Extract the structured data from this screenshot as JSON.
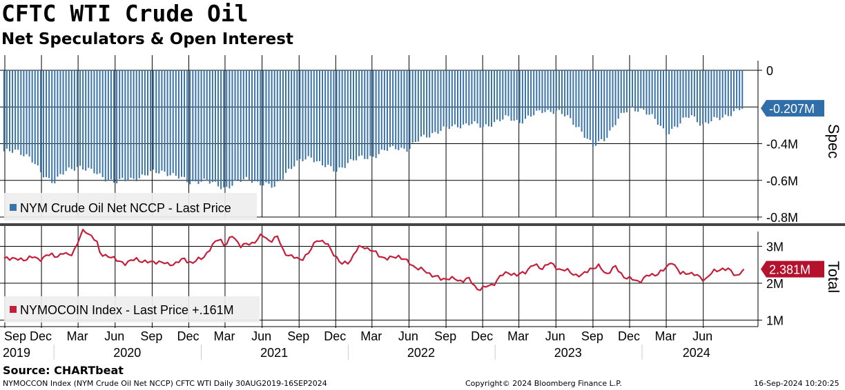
{
  "header": {
    "title": "CFTC WTI Crude Oil",
    "subtitle": "Net Speculators & Open Interest"
  },
  "footer": {
    "source": "Source: CHARTbeat",
    "description": "NYMOCCON Index (NYM Crude Oil Net NCCP) CFTC WTI  Daily 30AUG2019-16SEP2024",
    "copyright": "Copyright© 2024 Bloomberg Finance L.P.",
    "timestamp": "16-Sep-2024 10:20:25"
  },
  "colors": {
    "spec_bar": "#3a73a8",
    "total_line": "#c41e3a",
    "spec_label_bg": "#2f6ea8",
    "total_label_bg": "#b5122e",
    "grid": "#000000",
    "divider": "#444444"
  },
  "x_axis": {
    "month_ticks": [
      {
        "label": "Sep",
        "date": "2019-09-01"
      },
      {
        "label": "Dec",
        "date": "2019-12-01"
      },
      {
        "label": "Mar",
        "date": "2020-03-01"
      },
      {
        "label": "Jun",
        "date": "2020-06-01"
      },
      {
        "label": "Sep",
        "date": "2020-09-01"
      },
      {
        "label": "Dec",
        "date": "2020-12-01"
      },
      {
        "label": "Mar",
        "date": "2021-03-01"
      },
      {
        "label": "Jun",
        "date": "2021-06-01"
      },
      {
        "label": "Sep",
        "date": "2021-09-01"
      },
      {
        "label": "Dec",
        "date": "2021-12-01"
      },
      {
        "label": "Mar",
        "date": "2022-03-01"
      },
      {
        "label": "Jun",
        "date": "2022-06-01"
      },
      {
        "label": "Sep",
        "date": "2022-09-01"
      },
      {
        "label": "Dec",
        "date": "2022-12-01"
      },
      {
        "label": "Mar",
        "date": "2023-03-01"
      },
      {
        "label": "Jun",
        "date": "2023-06-01"
      },
      {
        "label": "Sep",
        "date": "2023-09-01"
      },
      {
        "label": "Dec",
        "date": "2023-12-01"
      },
      {
        "label": "Mar",
        "date": "2024-03-01"
      },
      {
        "label": "Jun",
        "date": "2024-06-01"
      }
    ],
    "year_labels": [
      {
        "label": "2019",
        "date": "2019-10-15"
      },
      {
        "label": "2020",
        "date": "2020-07-01"
      },
      {
        "label": "2021",
        "date": "2021-07-01"
      },
      {
        "label": "2022",
        "date": "2022-07-01"
      },
      {
        "label": "2023",
        "date": "2023-07-01"
      },
      {
        "label": "2024",
        "date": "2024-05-15"
      }
    ],
    "range": [
      "2019-08-20",
      "2024-10-15"
    ]
  },
  "chart_data": [
    {
      "type": "bar",
      "panel": "Spec",
      "axis_title": "Spec",
      "legend": "NYM Crude Oil Net NCCP - Last Price",
      "legend_placement": "bottom-left",
      "ylim": [
        -0.8,
        0
      ],
      "yticks": [
        {
          "value": 0,
          "label": "0"
        },
        {
          "value": -0.4,
          "label": "-0.4M"
        },
        {
          "value": -0.6,
          "label": "-0.6M"
        },
        {
          "value": -0.8,
          "label": "-0.8M"
        }
      ],
      "last_value_label": "-0.207M",
      "last_value": -0.207,
      "unit": "M",
      "points": [
        [
          "2019-08-30",
          -0.45
        ],
        [
          "2019-10-01",
          -0.43
        ],
        [
          "2019-11-01",
          -0.48
        ],
        [
          "2019-12-01",
          -0.56
        ],
        [
          "2020-01-01",
          -0.61
        ],
        [
          "2020-02-01",
          -0.55
        ],
        [
          "2020-03-01",
          -0.52
        ],
        [
          "2020-04-01",
          -0.55
        ],
        [
          "2020-05-01",
          -0.58
        ],
        [
          "2020-06-01",
          -0.61
        ],
        [
          "2020-07-01",
          -0.6
        ],
        [
          "2020-08-01",
          -0.58
        ],
        [
          "2020-09-01",
          -0.56
        ],
        [
          "2020-10-01",
          -0.55
        ],
        [
          "2020-11-01",
          -0.58
        ],
        [
          "2020-12-01",
          -0.61
        ],
        [
          "2021-01-01",
          -0.6
        ],
        [
          "2021-02-01",
          -0.62
        ],
        [
          "2021-03-01",
          -0.64
        ],
        [
          "2021-04-01",
          -0.61
        ],
        [
          "2021-05-01",
          -0.59
        ],
        [
          "2021-06-01",
          -0.62
        ],
        [
          "2021-07-01",
          -0.64
        ],
        [
          "2021-08-01",
          -0.55
        ],
        [
          "2021-09-01",
          -0.5
        ],
        [
          "2021-10-01",
          -0.47
        ],
        [
          "2021-11-01",
          -0.52
        ],
        [
          "2021-12-01",
          -0.55
        ],
        [
          "2022-01-01",
          -0.5
        ],
        [
          "2022-02-01",
          -0.48
        ],
        [
          "2022-03-01",
          -0.47
        ],
        [
          "2022-04-01",
          -0.44
        ],
        [
          "2022-05-01",
          -0.42
        ],
        [
          "2022-06-01",
          -0.43
        ],
        [
          "2022-07-01",
          -0.37
        ],
        [
          "2022-08-01",
          -0.34
        ],
        [
          "2022-09-01",
          -0.32
        ],
        [
          "2022-10-01",
          -0.3
        ],
        [
          "2022-11-01",
          -0.29
        ],
        [
          "2022-12-01",
          -0.31
        ],
        [
          "2023-01-01",
          -0.28
        ],
        [
          "2023-02-01",
          -0.26
        ],
        [
          "2023-03-01",
          -0.28
        ],
        [
          "2023-04-01",
          -0.25
        ],
        [
          "2023-05-01",
          -0.22
        ],
        [
          "2023-06-01",
          -0.22
        ],
        [
          "2023-07-01",
          -0.26
        ],
        [
          "2023-08-01",
          -0.32
        ],
        [
          "2023-09-01",
          -0.42
        ],
        [
          "2023-10-01",
          -0.37
        ],
        [
          "2023-11-01",
          -0.27
        ],
        [
          "2023-12-01",
          -0.21
        ],
        [
          "2024-01-01",
          -0.21
        ],
        [
          "2024-02-01",
          -0.27
        ],
        [
          "2024-03-01",
          -0.34
        ],
        [
          "2024-04-01",
          -0.3
        ],
        [
          "2024-05-01",
          -0.24
        ],
        [
          "2024-06-01",
          -0.3
        ],
        [
          "2024-07-01",
          -0.27
        ],
        [
          "2024-08-01",
          -0.24
        ],
        [
          "2024-09-10",
          -0.207
        ]
      ]
    },
    {
      "type": "line",
      "panel": "Total",
      "axis_title": "Total",
      "legend": "NYMOCOIN Index - Last Price +.161M",
      "legend_placement": "bottom-left",
      "ylim": [
        0.9,
        3.4
      ],
      "yticks": [
        {
          "value": 3,
          "label": "3M"
        },
        {
          "value": 2,
          "label": "2M"
        },
        {
          "value": 1,
          "label": "1M"
        }
      ],
      "last_value_label": "2.381M",
      "last_value": 2.381,
      "unit": "M",
      "points": [
        [
          "2019-08-30",
          2.65
        ],
        [
          "2019-09-20",
          2.7
        ],
        [
          "2019-10-15",
          2.6
        ],
        [
          "2019-11-05",
          2.75
        ],
        [
          "2019-11-25",
          2.6
        ],
        [
          "2019-12-15",
          2.8
        ],
        [
          "2020-01-05",
          2.7
        ],
        [
          "2020-01-25",
          2.85
        ],
        [
          "2020-02-10",
          2.7
        ],
        [
          "2020-02-25",
          3.0
        ],
        [
          "2020-03-10",
          3.4
        ],
        [
          "2020-03-25",
          3.35
        ],
        [
          "2020-04-15",
          3.2
        ],
        [
          "2020-04-25",
          2.75
        ],
        [
          "2020-05-20",
          2.75
        ],
        [
          "2020-06-05",
          2.6
        ],
        [
          "2020-06-25",
          2.55
        ],
        [
          "2020-07-25",
          2.65
        ],
        [
          "2020-08-25",
          2.55
        ],
        [
          "2020-09-15",
          2.6
        ],
        [
          "2020-10-10",
          2.5
        ],
        [
          "2020-10-30",
          2.55
        ],
        [
          "2020-11-20",
          2.65
        ],
        [
          "2020-12-10",
          2.55
        ],
        [
          "2021-01-05",
          2.7
        ],
        [
          "2021-01-25",
          2.95
        ],
        [
          "2021-02-15",
          3.25
        ],
        [
          "2021-03-01",
          3.0
        ],
        [
          "2021-03-20",
          3.3
        ],
        [
          "2021-04-10",
          3.0
        ],
        [
          "2021-05-10",
          3.1
        ],
        [
          "2021-06-01",
          3.3
        ],
        [
          "2021-06-20",
          3.15
        ],
        [
          "2021-07-10",
          3.25
        ],
        [
          "2021-07-25",
          2.85
        ],
        [
          "2021-08-15",
          2.7
        ],
        [
          "2021-09-05",
          2.65
        ],
        [
          "2021-09-25",
          2.8
        ],
        [
          "2021-10-15",
          3.2
        ],
        [
          "2021-11-10",
          3.05
        ],
        [
          "2021-11-30",
          2.75
        ],
        [
          "2021-12-15",
          2.5
        ],
        [
          "2022-01-05",
          2.6
        ],
        [
          "2022-01-25",
          2.95
        ],
        [
          "2022-02-10",
          3.0
        ],
        [
          "2022-02-25",
          2.9
        ],
        [
          "2022-03-20",
          2.75
        ],
        [
          "2022-04-10",
          2.65
        ],
        [
          "2022-05-05",
          2.75
        ],
        [
          "2022-05-25",
          2.6
        ],
        [
          "2022-06-15",
          2.45
        ],
        [
          "2022-07-05",
          2.35
        ],
        [
          "2022-07-25",
          2.25
        ],
        [
          "2022-08-20",
          2.1
        ],
        [
          "2022-09-10",
          2.15
        ],
        [
          "2022-10-05",
          2.05
        ],
        [
          "2022-10-25",
          2.15
        ],
        [
          "2022-11-15",
          1.85
        ],
        [
          "2022-12-05",
          1.88
        ],
        [
          "2022-12-25",
          1.95
        ],
        [
          "2023-01-15",
          2.2
        ],
        [
          "2023-02-05",
          2.3
        ],
        [
          "2023-02-25",
          2.2
        ],
        [
          "2023-03-15",
          2.3
        ],
        [
          "2023-04-05",
          2.5
        ],
        [
          "2023-04-25",
          2.4
        ],
        [
          "2023-05-15",
          2.55
        ],
        [
          "2023-06-05",
          2.4
        ],
        [
          "2023-06-25",
          2.35
        ],
        [
          "2023-07-15",
          2.25
        ],
        [
          "2023-08-05",
          2.2
        ],
        [
          "2023-08-25",
          2.4
        ],
        [
          "2023-09-15",
          2.45
        ],
        [
          "2023-10-05",
          2.25
        ],
        [
          "2023-10-25",
          2.45
        ],
        [
          "2023-11-15",
          2.2
        ],
        [
          "2023-12-05",
          2.1
        ],
        [
          "2023-12-25",
          2.05
        ],
        [
          "2024-01-15",
          2.2
        ],
        [
          "2024-02-05",
          2.25
        ],
        [
          "2024-02-25",
          2.35
        ],
        [
          "2024-03-15",
          2.6
        ],
        [
          "2024-04-05",
          2.25
        ],
        [
          "2024-04-25",
          2.3
        ],
        [
          "2024-05-15",
          2.2
        ],
        [
          "2024-06-05",
          2.1
        ],
        [
          "2024-06-25",
          2.3
        ],
        [
          "2024-07-15",
          2.4
        ],
        [
          "2024-08-05",
          2.35
        ],
        [
          "2024-08-25",
          2.2
        ],
        [
          "2024-09-10",
          2.381
        ]
      ]
    }
  ]
}
